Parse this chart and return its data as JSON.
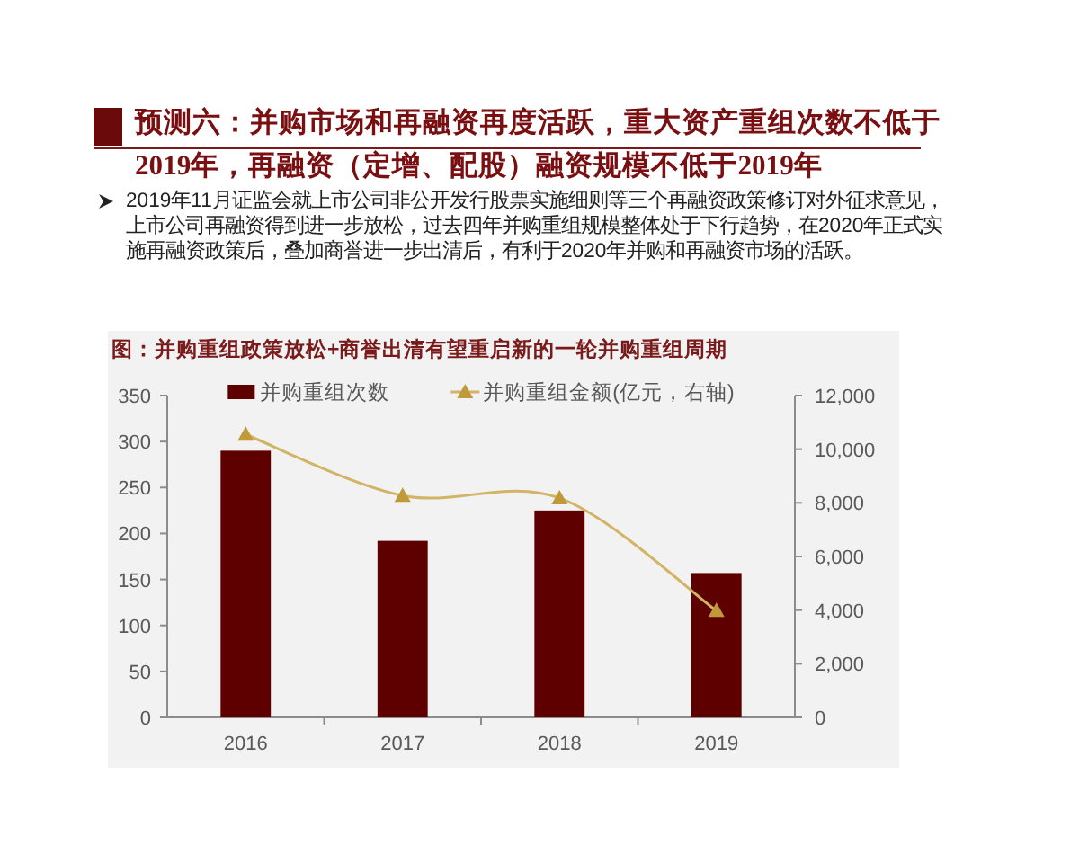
{
  "chart_data": {
    "type": "bar",
    "title": "图：并购重组政策放松+商誉出清有望重启新的一轮并购重组周期",
    "annotations": [
      "预测六：并购市场和再融资再度活跃，重大资产重组次数不低于2019年，再融资（定增、配股）融资规模不低于2019年",
      "2019年11月证监会就上市公司非公开发行股票实施细则等三个再融资政策修订对外征求意见，上市公司再融资得到进一步放松，过去四年并购重组规模整体处于下行趋势，在2020年正式实施再融资政策后，叠加商誉进一步出清后，有利于2020年并购和再融资市场的活跃。"
    ],
    "categories": [
      "2016",
      "2017",
      "2018",
      "2019"
    ],
    "series": [
      {
        "name": "并购重组次数",
        "color": "#5e0000",
        "values": [
          290,
          192,
          225,
          157
        ]
      },
      {
        "name": "并购重组金额(亿元，右轴)",
        "type": "line",
        "axis": "y2",
        "color": "#d2b466",
        "marker": "triangle",
        "values": [
          10550,
          8270,
          8180,
          3980
        ]
      }
    ],
    "ylim": [
      0,
      350
    ],
    "yticks": [
      0,
      50,
      100,
      150,
      200,
      250,
      300,
      350
    ],
    "y2lim": [
      0,
      12000
    ],
    "y2ticks": [
      0,
      {
        "value": 2000,
        "label": "2,000"
      },
      {
        "value": 4000,
        "label": "4,000"
      },
      {
        "value": 6000,
        "label": "6,000"
      },
      {
        "value": 8000,
        "label": "8,000"
      },
      {
        "value": 10000,
        "label": "10,000"
      },
      {
        "value": 12000,
        "label": "12,000"
      }
    ],
    "legend": "top"
  }
}
